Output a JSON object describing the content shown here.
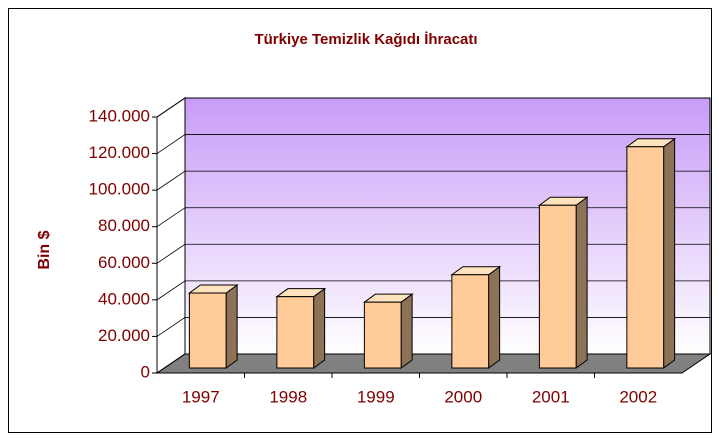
{
  "chart_data": {
    "type": "bar",
    "title": "Türkiye Temizlik Kağıdı İhracatı",
    "y_label": "Bin $",
    "categories": [
      "1997",
      "1998",
      "1999",
      "2000",
      "2001",
      "2002"
    ],
    "values": [
      41000,
      39000,
      36000,
      51000,
      89000,
      121000
    ],
    "color": "#ffcc99",
    "ylim": [
      0,
      140000
    ],
    "yticks": [
      0,
      {
        "value": 20000,
        "label": "20.000"
      },
      {
        "value": 40000,
        "label": "40.000"
      },
      {
        "value": 60000,
        "label": "60.000"
      },
      {
        "value": 80000,
        "label": "80.000"
      },
      {
        "value": 100000,
        "label": "100.000"
      },
      {
        "value": 120000,
        "label": "120.000"
      },
      {
        "value": 140000,
        "label": "140.000"
      }
    ],
    "grid": true
  }
}
